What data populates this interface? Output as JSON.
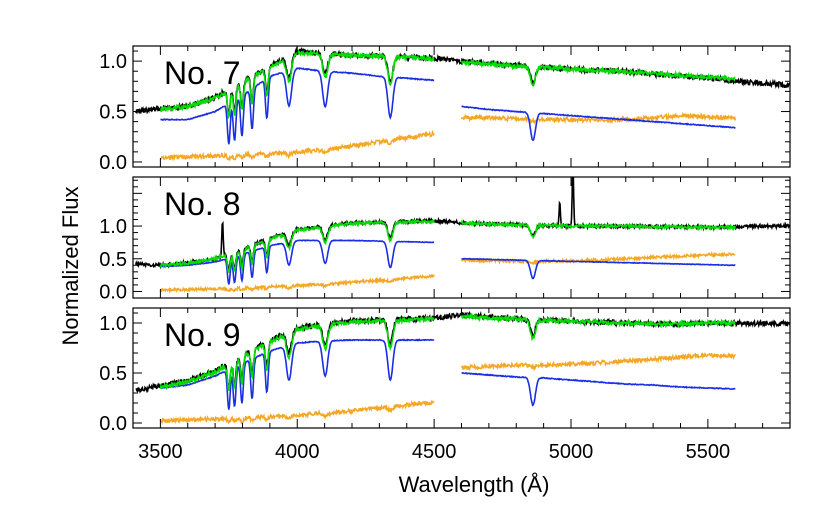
{
  "chart_data": {
    "type": "line",
    "xlabel": "Wavelength (Å)",
    "ylabel": "Normalized Flux",
    "xlim": [
      3400,
      5800
    ],
    "x_ticks": [
      3500,
      4000,
      4500,
      5000,
      5500
    ],
    "grid": false,
    "colors": {
      "observed": "#000000",
      "model_total": "#00dd00",
      "component_blue": "#1a2ee6",
      "component_orange": "#f5a623"
    },
    "panels": [
      {
        "label": "No. 7",
        "ylim": [
          -0.05,
          1.15
        ],
        "y_ticks": [
          {
            "v": 1.0,
            "t": "1.0"
          },
          {
            "v": 0.5,
            "t": "0.5"
          },
          {
            "v": 0.0,
            "t": "0.0"
          }
        ],
        "observed": [
          [
            3410,
            0.5
          ],
          [
            3500,
            0.53
          ],
          [
            3600,
            0.55
          ],
          [
            3700,
            0.64
          ],
          [
            3800,
            0.8
          ],
          [
            3900,
            0.95
          ],
          [
            4000,
            1.1
          ],
          [
            4100,
            1.08
          ],
          [
            4200,
            1.06
          ],
          [
            4300,
            1.05
          ],
          [
            4400,
            1.04
          ],
          [
            4500,
            1.03
          ],
          [
            4600,
            1.0
          ],
          [
            4700,
            0.98
          ],
          [
            4800,
            0.96
          ],
          [
            4900,
            0.94
          ],
          [
            5000,
            0.92
          ],
          [
            5100,
            0.91
          ],
          [
            5200,
            0.9
          ],
          [
            5300,
            0.87
          ],
          [
            5400,
            0.85
          ],
          [
            5500,
            0.83
          ],
          [
            5600,
            0.8
          ],
          [
            5700,
            0.78
          ],
          [
            5800,
            0.76
          ]
        ],
        "model_total": [
          [
            3500,
            0.52
          ],
          [
            3600,
            0.55
          ],
          [
            3700,
            0.63
          ],
          [
            3800,
            0.79
          ],
          [
            3900,
            0.94
          ],
          [
            4000,
            1.08
          ],
          [
            4100,
            1.07
          ],
          [
            4200,
            1.06
          ],
          [
            4300,
            1.05
          ],
          [
            4400,
            1.04
          ],
          [
            4500,
            1.02
          ],
          [
            4600,
            0.99
          ],
          [
            4700,
            0.97
          ],
          [
            4800,
            0.95
          ],
          [
            4900,
            0.94
          ],
          [
            5000,
            0.92
          ],
          [
            5100,
            0.91
          ],
          [
            5200,
            0.9
          ],
          [
            5300,
            0.88
          ],
          [
            5400,
            0.86
          ],
          [
            5500,
            0.84
          ],
          [
            5600,
            0.82
          ]
        ],
        "component_blue": [
          [
            3500,
            0.42
          ],
          [
            3600,
            0.42
          ],
          [
            3700,
            0.5
          ],
          [
            3800,
            0.66
          ],
          [
            3900,
            0.85
          ],
          [
            4000,
            0.93
          ],
          [
            4100,
            0.9
          ],
          [
            4200,
            0.88
          ],
          [
            4300,
            0.85
          ],
          [
            4400,
            0.83
          ],
          [
            4500,
            0.81
          ],
          [
            4600,
            0.55
          ],
          [
            4700,
            0.52
          ],
          [
            4800,
            0.5
          ],
          [
            4900,
            0.48
          ],
          [
            5000,
            0.46
          ],
          [
            5100,
            0.44
          ],
          [
            5200,
            0.42
          ],
          [
            5300,
            0.4
          ],
          [
            5400,
            0.38
          ],
          [
            5500,
            0.36
          ],
          [
            5600,
            0.34
          ]
        ],
        "component_orange": [
          [
            3500,
            0.04
          ],
          [
            3600,
            0.05
          ],
          [
            3700,
            0.06
          ],
          [
            3800,
            0.07
          ],
          [
            3900,
            0.08
          ],
          [
            4000,
            0.1
          ],
          [
            4100,
            0.12
          ],
          [
            4200,
            0.16
          ],
          [
            4300,
            0.2
          ],
          [
            4400,
            0.24
          ],
          [
            4500,
            0.28
          ],
          [
            4600,
            0.44
          ],
          [
            4700,
            0.44
          ],
          [
            4800,
            0.43
          ],
          [
            4900,
            0.42
          ],
          [
            5000,
            0.42
          ],
          [
            5100,
            0.41
          ],
          [
            5200,
            0.42
          ],
          [
            5300,
            0.44
          ],
          [
            5400,
            0.46
          ],
          [
            5500,
            0.45
          ],
          [
            5600,
            0.43
          ]
        ],
        "absorption_lines": [
          3750,
          3771,
          3798,
          3835,
          3889,
          3970,
          4102,
          4340,
          4861
        ],
        "emission_lines": []
      },
      {
        "label": "No. 8",
        "ylim": [
          -0.1,
          1.75
        ],
        "y_ticks": [
          {
            "v": 1.0,
            "t": "1.0"
          },
          {
            "v": 0.5,
            "t": "0.5"
          },
          {
            "v": 0.0,
            "t": "0.0"
          }
        ],
        "observed": [
          [
            3410,
            0.42
          ],
          [
            3500,
            0.4
          ],
          [
            3600,
            0.44
          ],
          [
            3700,
            0.5
          ],
          [
            3800,
            0.65
          ],
          [
            3900,
            0.82
          ],
          [
            4000,
            0.95
          ],
          [
            4100,
            1.0
          ],
          [
            4200,
            1.05
          ],
          [
            4300,
            1.06
          ],
          [
            4400,
            1.07
          ],
          [
            4500,
            1.08
          ],
          [
            4600,
            1.05
          ],
          [
            4700,
            1.03
          ],
          [
            4800,
            1.02
          ],
          [
            4900,
            1.01
          ],
          [
            5000,
            1.0
          ],
          [
            5100,
            1.0
          ],
          [
            5200,
            1.0
          ],
          [
            5300,
            0.99
          ],
          [
            5400,
            0.99
          ],
          [
            5500,
            0.98
          ],
          [
            5600,
            0.99
          ],
          [
            5700,
            1.0
          ],
          [
            5800,
            1.0
          ]
        ],
        "model_total": [
          [
            3500,
            0.4
          ],
          [
            3600,
            0.43
          ],
          [
            3700,
            0.5
          ],
          [
            3800,
            0.64
          ],
          [
            3900,
            0.8
          ],
          [
            4000,
            0.94
          ],
          [
            4100,
            0.99
          ],
          [
            4200,
            1.04
          ],
          [
            4300,
            1.05
          ],
          [
            4400,
            1.06
          ],
          [
            4500,
            1.07
          ],
          [
            4600,
            1.05
          ],
          [
            4700,
            1.03
          ],
          [
            4800,
            1.02
          ],
          [
            4900,
            1.01
          ],
          [
            5000,
            1.0
          ],
          [
            5100,
            1.0
          ],
          [
            5200,
            1.0
          ],
          [
            5300,
            0.99
          ],
          [
            5400,
            0.99
          ],
          [
            5500,
            0.98
          ],
          [
            5600,
            0.98
          ]
        ],
        "component_blue": [
          [
            3500,
            0.38
          ],
          [
            3600,
            0.4
          ],
          [
            3700,
            0.45
          ],
          [
            3800,
            0.57
          ],
          [
            3900,
            0.7
          ],
          [
            4000,
            0.78
          ],
          [
            4100,
            0.78
          ],
          [
            4200,
            0.78
          ],
          [
            4300,
            0.77
          ],
          [
            4400,
            0.76
          ],
          [
            4500,
            0.75
          ],
          [
            4600,
            0.5
          ],
          [
            4700,
            0.49
          ],
          [
            4800,
            0.48
          ],
          [
            4900,
            0.47
          ],
          [
            5000,
            0.46
          ],
          [
            5100,
            0.45
          ],
          [
            5200,
            0.44
          ],
          [
            5300,
            0.43
          ],
          [
            5400,
            0.42
          ],
          [
            5500,
            0.41
          ],
          [
            5600,
            0.4
          ]
        ],
        "component_orange": [
          [
            3500,
            0.02
          ],
          [
            3600,
            0.03
          ],
          [
            3700,
            0.04
          ],
          [
            3800,
            0.05
          ],
          [
            3900,
            0.07
          ],
          [
            4000,
            0.09
          ],
          [
            4100,
            0.11
          ],
          [
            4200,
            0.14
          ],
          [
            4300,
            0.17
          ],
          [
            4400,
            0.2
          ],
          [
            4500,
            0.24
          ],
          [
            4600,
            0.48
          ],
          [
            4700,
            0.47
          ],
          [
            4800,
            0.46
          ],
          [
            4900,
            0.46
          ],
          [
            5000,
            0.47
          ],
          [
            5100,
            0.48
          ],
          [
            5200,
            0.5
          ],
          [
            5300,
            0.52
          ],
          [
            5400,
            0.54
          ],
          [
            5500,
            0.56
          ],
          [
            5600,
            0.57
          ]
        ],
        "absorption_lines": [
          3750,
          3771,
          3798,
          3835,
          3889,
          3970,
          4102,
          4340,
          4861
        ],
        "emission_lines": [
          {
            "x": 3727,
            "h": 0.55
          },
          {
            "x": 4959,
            "h": 0.35
          },
          {
            "x": 5007,
            "h": 0.95
          }
        ]
      },
      {
        "label": "No. 9",
        "ylim": [
          -0.05,
          1.15
        ],
        "y_ticks": [
          {
            "v": 1.0,
            "t": "1.0"
          },
          {
            "v": 0.5,
            "t": "0.5"
          },
          {
            "v": 0.0,
            "t": "0.0"
          }
        ],
        "observed": [
          [
            3410,
            0.33
          ],
          [
            3500,
            0.37
          ],
          [
            3600,
            0.42
          ],
          [
            3700,
            0.52
          ],
          [
            3800,
            0.68
          ],
          [
            3900,
            0.82
          ],
          [
            4000,
            0.95
          ],
          [
            4100,
            0.99
          ],
          [
            4200,
            1.02
          ],
          [
            4300,
            1.03
          ],
          [
            4400,
            1.04
          ],
          [
            4500,
            1.05
          ],
          [
            4600,
            1.08
          ],
          [
            4700,
            1.06
          ],
          [
            4800,
            1.04
          ],
          [
            4900,
            1.03
          ],
          [
            5000,
            1.02
          ],
          [
            5100,
            1.01
          ],
          [
            5200,
            1.0
          ],
          [
            5300,
            0.99
          ],
          [
            5400,
            0.99
          ],
          [
            5500,
            1.0
          ],
          [
            5600,
            1.0
          ],
          [
            5700,
            1.0
          ],
          [
            5800,
            0.99
          ]
        ],
        "model_total": [
          [
            3500,
            0.36
          ],
          [
            3600,
            0.41
          ],
          [
            3700,
            0.51
          ],
          [
            3800,
            0.67
          ],
          [
            3900,
            0.81
          ],
          [
            4000,
            0.94
          ],
          [
            4100,
            0.98
          ],
          [
            4200,
            1.01
          ],
          [
            4300,
            1.02
          ],
          [
            4400,
            1.03
          ],
          [
            4500,
            1.04
          ],
          [
            4600,
            1.07
          ],
          [
            4700,
            1.05
          ],
          [
            4800,
            1.04
          ],
          [
            4900,
            1.03
          ],
          [
            5000,
            1.02
          ],
          [
            5100,
            1.01
          ],
          [
            5200,
            1.0
          ],
          [
            5300,
            0.99
          ],
          [
            5400,
            0.99
          ],
          [
            5500,
            1.0
          ],
          [
            5600,
            1.0
          ]
        ],
        "component_blue": [
          [
            3500,
            0.35
          ],
          [
            3600,
            0.38
          ],
          [
            3700,
            0.47
          ],
          [
            3800,
            0.6
          ],
          [
            3900,
            0.72
          ],
          [
            4000,
            0.8
          ],
          [
            4100,
            0.82
          ],
          [
            4200,
            0.83
          ],
          [
            4300,
            0.83
          ],
          [
            4400,
            0.83
          ],
          [
            4500,
            0.83
          ],
          [
            4600,
            0.5
          ],
          [
            4700,
            0.48
          ],
          [
            4800,
            0.46
          ],
          [
            4900,
            0.45
          ],
          [
            5000,
            0.43
          ],
          [
            5100,
            0.41
          ],
          [
            5200,
            0.39
          ],
          [
            5300,
            0.38
          ],
          [
            5400,
            0.36
          ],
          [
            5500,
            0.35
          ],
          [
            5600,
            0.34
          ]
        ],
        "component_orange": [
          [
            3500,
            0.02
          ],
          [
            3600,
            0.03
          ],
          [
            3700,
            0.04
          ],
          [
            3800,
            0.05
          ],
          [
            3900,
            0.06
          ],
          [
            4000,
            0.08
          ],
          [
            4100,
            0.1
          ],
          [
            4200,
            0.12
          ],
          [
            4300,
            0.15
          ],
          [
            4400,
            0.18
          ],
          [
            4500,
            0.21
          ],
          [
            4600,
            0.55
          ],
          [
            4700,
            0.57
          ],
          [
            4800,
            0.58
          ],
          [
            4900,
            0.58
          ],
          [
            5000,
            0.59
          ],
          [
            5100,
            0.6
          ],
          [
            5200,
            0.62
          ],
          [
            5300,
            0.64
          ],
          [
            5400,
            0.66
          ],
          [
            5500,
            0.68
          ],
          [
            5600,
            0.67
          ]
        ],
        "absorption_lines": [
          3750,
          3771,
          3798,
          3835,
          3889,
          3970,
          4102,
          4340,
          4861
        ],
        "emission_lines": []
      }
    ]
  }
}
